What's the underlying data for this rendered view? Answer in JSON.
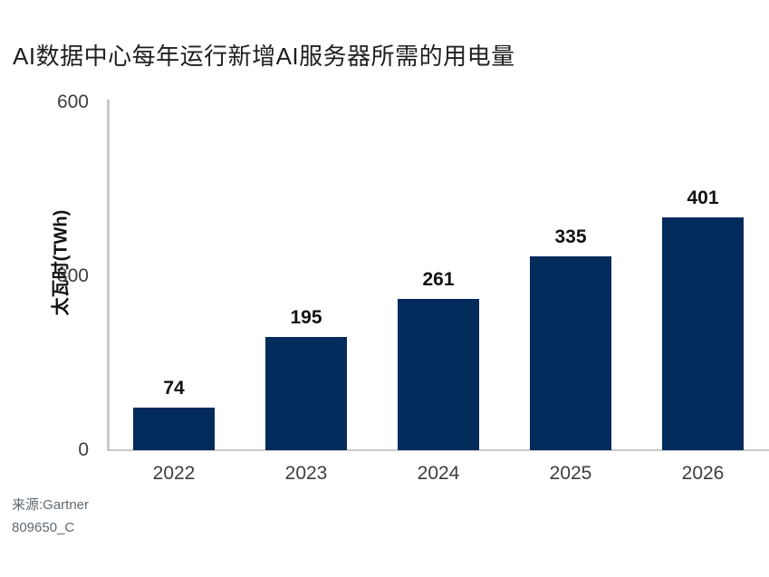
{
  "title": "AI数据中心每年运行新增AI服务器所需的用电量",
  "chart_data": {
    "type": "bar",
    "title": "AI数据中心每年运行新增AI服务器所需的用电量",
    "categories": [
      "2022",
      "2023",
      "2024",
      "2025",
      "2026"
    ],
    "values": [
      74,
      195,
      261,
      335,
      401
    ],
    "data_labels": [
      "74",
      "195",
      "261",
      "335",
      "401"
    ],
    "xlabel": "",
    "ylabel": "太瓦时(TWh)",
    "ylim": [
      0,
      600
    ],
    "yticks": [
      600,
      300,
      0
    ],
    "grid": false,
    "legend": false,
    "bar_color": "#032b5c"
  },
  "source": {
    "line1": "来源:Gartner",
    "line2": "809650_C"
  },
  "colors": {
    "bar": "#032b5c",
    "axis_line": "#c9c9c9",
    "tick_text": "#3d3d3d",
    "title_text": "#1f1f1f",
    "value_text": "#111111",
    "source_text": "#5f6a72"
  }
}
